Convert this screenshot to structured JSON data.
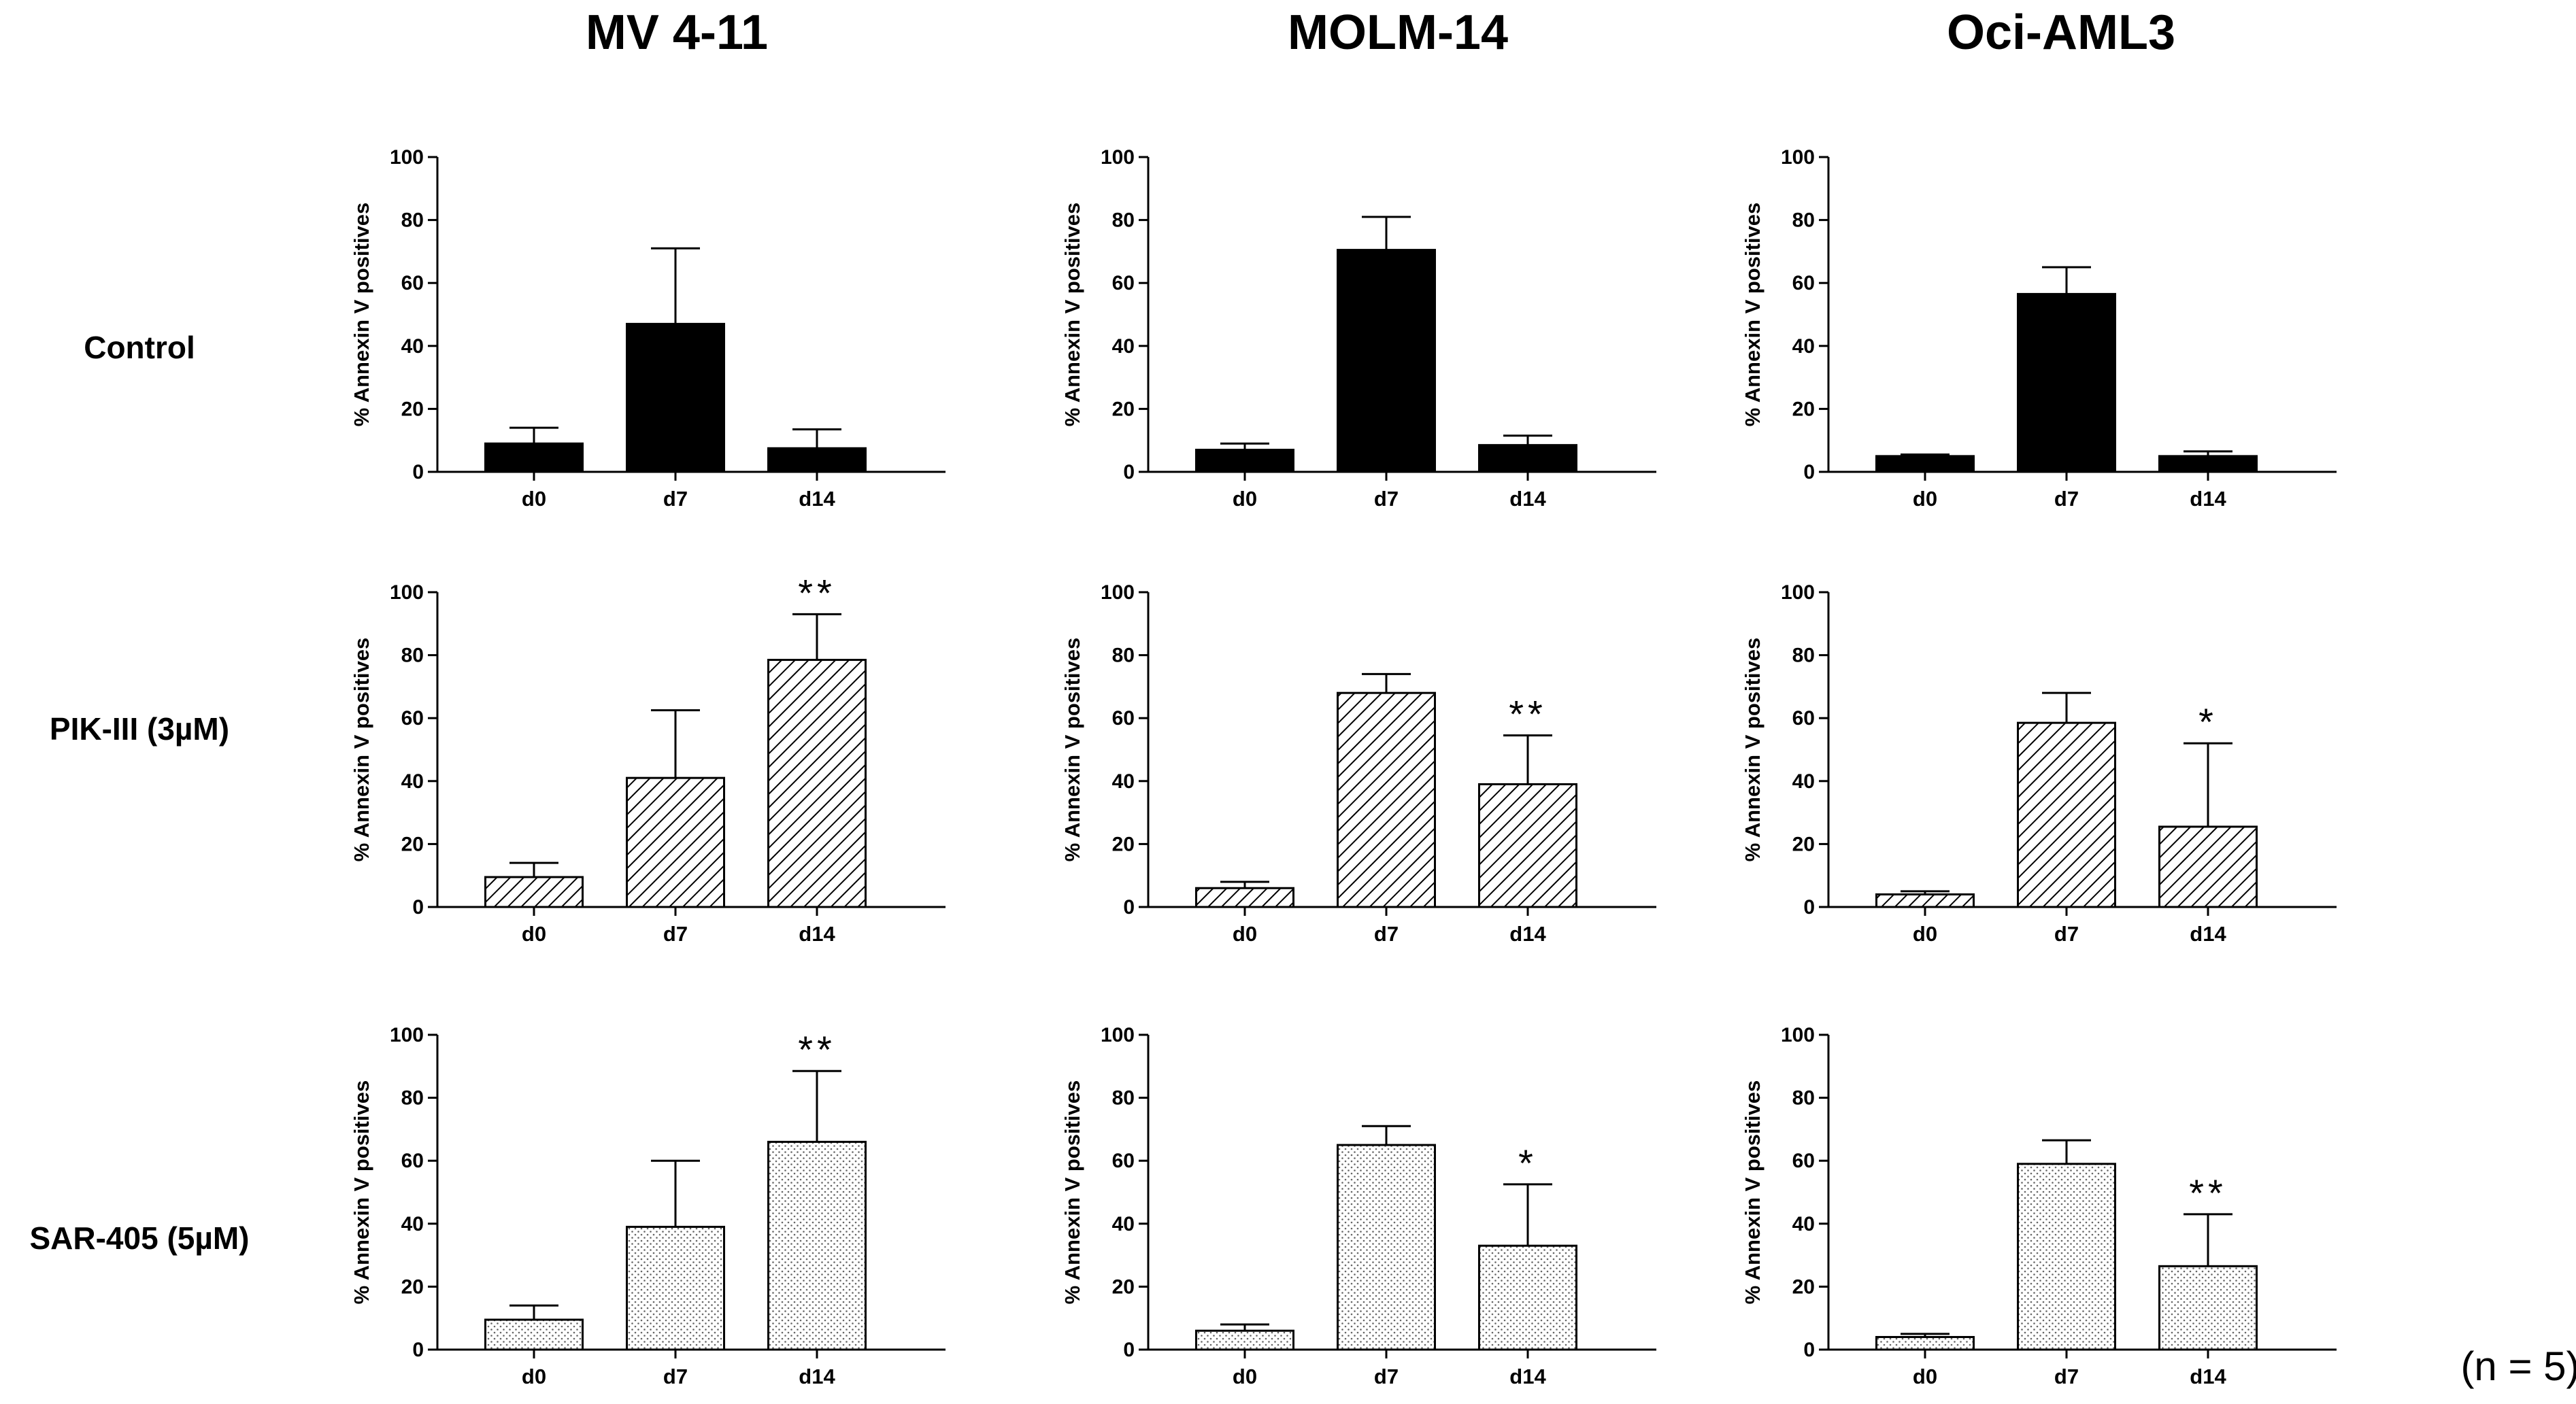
{
  "figure": {
    "columns": [
      "MV 4-11",
      "MOLM-14",
      "Oci-AML3"
    ],
    "rows": [
      "Control",
      "PIK-III (3µM)",
      "SAR-405 (5µM)"
    ],
    "n_label": "(n = 5)",
    "colors": {
      "control_fill": "#000000",
      "stroke": "#000000",
      "background": "#ffffff"
    },
    "fill_patterns": {
      "Control": "solid-black",
      "PIK-III (3µM)": "diagonal-hatch",
      "SAR-405 (5µM)": "dotted-stipple"
    }
  },
  "chart_data": [
    {
      "type": "bar",
      "column": "MV 4-11",
      "row": "Control",
      "categories": [
        "d0",
        "d7",
        "d14"
      ],
      "values": [
        9,
        47,
        7.5
      ],
      "errors": [
        5,
        24,
        6
      ],
      "significance": [
        "",
        "",
        ""
      ],
      "ylabel": "% Annexin V positives",
      "ylim": [
        0,
        100
      ],
      "yticks": [
        0,
        20,
        40,
        60,
        80,
        100
      ]
    },
    {
      "type": "bar",
      "column": "MOLM-14",
      "row": "Control",
      "categories": [
        "d0",
        "d7",
        "d14"
      ],
      "values": [
        7,
        70.5,
        8.5
      ],
      "errors": [
        2,
        10.5,
        3
      ],
      "significance": [
        "",
        "",
        ""
      ],
      "ylabel": "% Annexin V positives",
      "ylim": [
        0,
        100
      ],
      "yticks": [
        0,
        20,
        40,
        60,
        80,
        100
      ]
    },
    {
      "type": "bar",
      "column": "Oci-AML3",
      "row": "Control",
      "categories": [
        "d0",
        "d7",
        "d14"
      ],
      "values": [
        5,
        56.5,
        5
      ],
      "errors": [
        0.5,
        8.5,
        1.5
      ],
      "significance": [
        "",
        "",
        ""
      ],
      "ylabel": "% Annexin V positives",
      "ylim": [
        0,
        100
      ],
      "yticks": [
        0,
        20,
        40,
        60,
        80,
        100
      ]
    },
    {
      "type": "bar",
      "column": "MV 4-11",
      "row": "PIK-III (3µM)",
      "categories": [
        "d0",
        "d7",
        "d14"
      ],
      "values": [
        9.5,
        41,
        78.5
      ],
      "errors": [
        4.5,
        21.5,
        14.5
      ],
      "significance": [
        "",
        "",
        "**"
      ],
      "ylabel": "% Annexin V positives",
      "ylim": [
        0,
        100
      ],
      "yticks": [
        0,
        20,
        40,
        60,
        80,
        100
      ]
    },
    {
      "type": "bar",
      "column": "MOLM-14",
      "row": "PIK-III (3µM)",
      "categories": [
        "d0",
        "d7",
        "d14"
      ],
      "values": [
        6,
        68,
        39
      ],
      "errors": [
        2,
        6,
        15.5
      ],
      "significance": [
        "",
        "",
        "**"
      ],
      "ylabel": "% Annexin V positives",
      "ylim": [
        0,
        100
      ],
      "yticks": [
        0,
        20,
        40,
        60,
        80,
        100
      ]
    },
    {
      "type": "bar",
      "column": "Oci-AML3",
      "row": "PIK-III (3µM)",
      "categories": [
        "d0",
        "d7",
        "d14"
      ],
      "values": [
        4,
        58.5,
        25.5
      ],
      "errors": [
        1,
        9.5,
        26.5
      ],
      "significance": [
        "",
        "",
        "*"
      ],
      "ylabel": "% Annexin V positives",
      "ylim": [
        0,
        100
      ],
      "yticks": [
        0,
        20,
        40,
        60,
        80,
        100
      ]
    },
    {
      "type": "bar",
      "column": "MV 4-11",
      "row": "SAR-405 (5µM)",
      "categories": [
        "d0",
        "d7",
        "d14"
      ],
      "values": [
        9.5,
        39,
        66
      ],
      "errors": [
        4.5,
        21,
        22.5
      ],
      "significance": [
        "",
        "",
        "**"
      ],
      "ylabel": "% Annexin V positives",
      "ylim": [
        0,
        100
      ],
      "yticks": [
        0,
        20,
        40,
        60,
        80,
        100
      ]
    },
    {
      "type": "bar",
      "column": "MOLM-14",
      "row": "SAR-405 (5µM)",
      "categories": [
        "d0",
        "d7",
        "d14"
      ],
      "values": [
        6,
        65,
        33
      ],
      "errors": [
        2,
        6,
        19.5
      ],
      "significance": [
        "",
        "",
        "*"
      ],
      "ylabel": "% Annexin V positives",
      "ylim": [
        0,
        100
      ],
      "yticks": [
        0,
        20,
        40,
        60,
        80,
        100
      ]
    },
    {
      "type": "bar",
      "column": "Oci-AML3",
      "row": "SAR-405 (5µM)",
      "categories": [
        "d0",
        "d7",
        "d14"
      ],
      "values": [
        4,
        59,
        26.5
      ],
      "errors": [
        1,
        7.5,
        16.5
      ],
      "significance": [
        "",
        "",
        "**"
      ],
      "ylabel": "% Annexin V positives",
      "ylim": [
        0,
        100
      ],
      "yticks": [
        0,
        20,
        40,
        60,
        80,
        100
      ]
    }
  ]
}
